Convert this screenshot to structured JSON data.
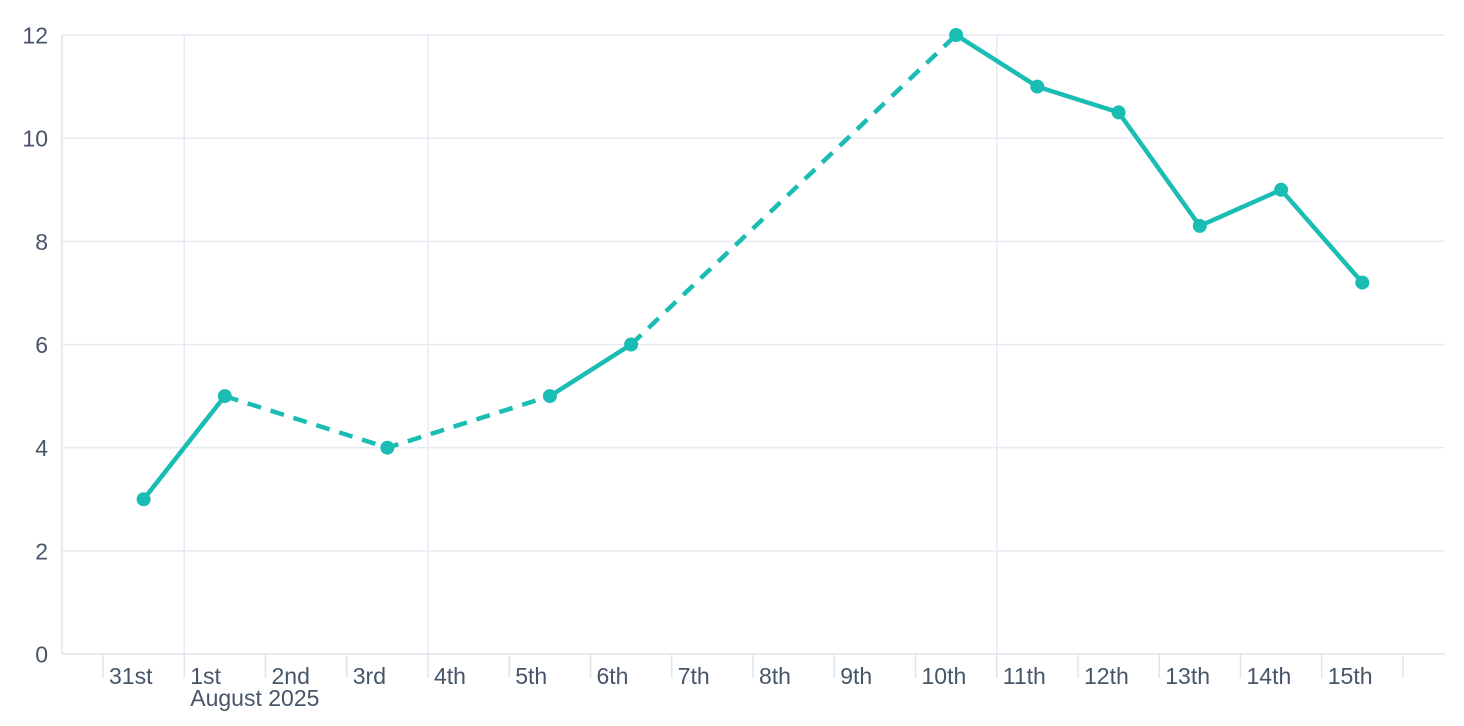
{
  "chart_data": {
    "type": "line",
    "title": "",
    "x_axis": {
      "tick_labels": [
        "31st",
        "1st",
        "2nd",
        "3rd",
        "4th",
        "5th",
        "6th",
        "7th",
        "8th",
        "9th",
        "10th",
        "11th",
        "12th",
        "13th",
        "14th",
        "15th"
      ],
      "secondary_label": "August 2025",
      "secondary_label_under_tick": "1st",
      "vertical_gridline_ticks": [
        "1st",
        "4th",
        "11th"
      ]
    },
    "y_axis": {
      "tick_labels": [
        "0",
        "2",
        "4",
        "6",
        "8",
        "10",
        "12"
      ],
      "min": 0,
      "max": 12,
      "grid": true
    },
    "series": [
      {
        "name": "series-1",
        "points": [
          {
            "x_label": "31st",
            "day_index": 0,
            "value": 3,
            "connector_to_next": "solid"
          },
          {
            "x_label": "1st",
            "day_index": 1,
            "value": 5,
            "connector_to_next": "dashed"
          },
          {
            "x_label": "3rd",
            "day_index": 3,
            "value": 4,
            "connector_to_next": "dashed"
          },
          {
            "x_label": "5th",
            "day_index": 5,
            "value": 5,
            "connector_to_next": "solid"
          },
          {
            "x_label": "6th",
            "day_index": 6,
            "value": 6,
            "connector_to_next": "dashed"
          },
          {
            "x_label": "10th",
            "day_index": 10,
            "value": 12,
            "connector_to_next": "solid"
          },
          {
            "x_label": "11th",
            "day_index": 11,
            "value": 11,
            "connector_to_next": "solid"
          },
          {
            "x_label": "12th",
            "day_index": 12,
            "value": 10.5,
            "connector_to_next": "solid"
          },
          {
            "x_label": "13th",
            "day_index": 13,
            "value": 8.3,
            "connector_to_next": "solid"
          },
          {
            "x_label": "14th",
            "day_index": 14,
            "value": 9,
            "connector_to_next": "solid"
          },
          {
            "x_label": "15th",
            "day_index": 15,
            "value": 7.2,
            "connector_to_next": "none"
          }
        ]
      }
    ],
    "legend": null,
    "colors": {
      "line": "#1abdb3",
      "marker": "#1abdb3",
      "gridline": "#e7eaf3",
      "axis_line": "#dfe5ef",
      "axis_text": "#475569",
      "background": "#ffffff"
    }
  }
}
